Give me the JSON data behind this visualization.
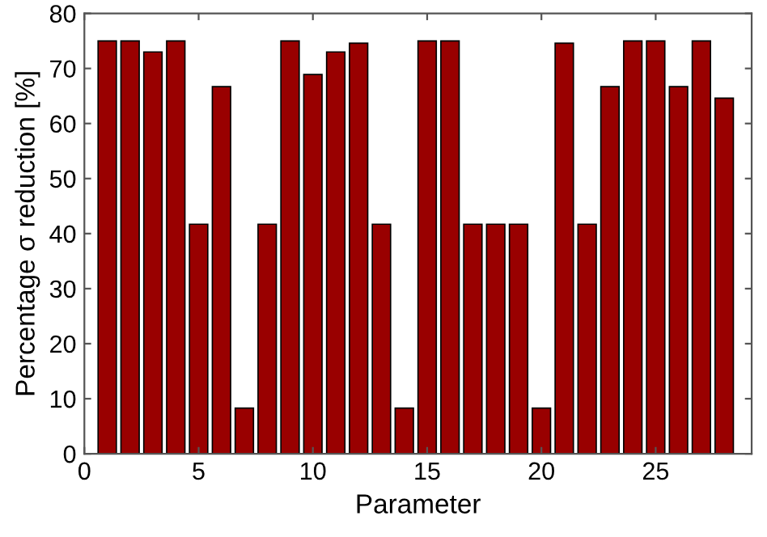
{
  "chart_data": {
    "type": "bar",
    "xlabel": "Parameter",
    "ylabel": "Percentage σ reduction [%]",
    "x": [
      1,
      2,
      3,
      4,
      5,
      6,
      7,
      8,
      9,
      10,
      11,
      12,
      13,
      14,
      15,
      16,
      17,
      18,
      19,
      20,
      21,
      22,
      23,
      24,
      25,
      26,
      27,
      28
    ],
    "values": [
      75,
      75,
      73,
      75,
      41.7,
      66.7,
      8.3,
      41.7,
      75,
      68.9,
      73,
      74.6,
      41.7,
      8.3,
      75,
      75,
      41.7,
      41.7,
      41.7,
      8.3,
      74.6,
      41.7,
      66.7,
      75,
      75,
      66.7,
      75,
      64.6
    ],
    "color": "#990000",
    "xlim": [
      0,
      29.2
    ],
    "xticks": [
      0,
      5,
      10,
      15,
      20,
      25
    ],
    "ylim": [
      0,
      80
    ],
    "yticks": [
      0,
      10,
      20,
      30,
      40,
      50,
      60,
      70,
      80
    ],
    "grid": false
  }
}
